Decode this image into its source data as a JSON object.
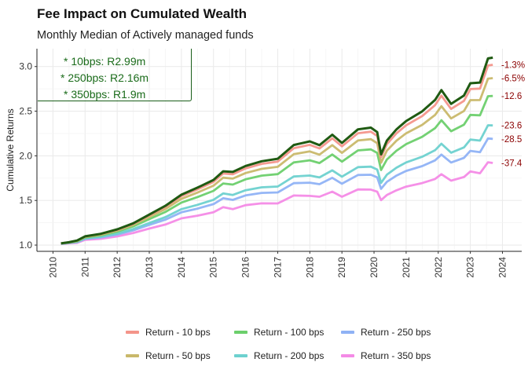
{
  "title": "Fee Impact on Cumulated Wealth",
  "subtitle": "Monthly Median of Actively managed funds",
  "annotations": [
    {
      "text": "* 10bps: R2.99m"
    },
    {
      "text": "* 250bps: R2.16m"
    },
    {
      "text": "* 350bps: R1.9m"
    }
  ],
  "legend": [
    {
      "label": "Return - 10 bps",
      "color": "#f4958a"
    },
    {
      "label": "Return - 100 bps",
      "color": "#6ccf6c"
    },
    {
      "label": "Return - 250 bps",
      "color": "#8fb2f5"
    },
    {
      "label": "Return - 50 bps",
      "color": "#c9b86a"
    },
    {
      "label": "Return - 200 bps",
      "color": "#6dd1cf"
    },
    {
      "label": "Return - 350 bps",
      "color": "#f48ae6"
    }
  ],
  "chart_data": {
    "type": "line",
    "ylabel": "Cumulative Returns",
    "xlabel": "",
    "xlim": [
      2009.5,
      2024.6
    ],
    "ylim": [
      0.93,
      3.2
    ],
    "x_ticks": [
      "2010",
      "2011",
      "2012",
      "2013",
      "2014",
      "2015",
      "2016",
      "2017",
      "2018",
      "2019",
      "2020",
      "2021",
      "2022",
      "2023",
      "2024"
    ],
    "y_ticks": [
      "1.0",
      "1.5",
      "2.0",
      "2.5",
      "3.0"
    ],
    "grid": true,
    "base": {
      "x": [
        2010.25,
        2010.5,
        2010.75,
        2011.0,
        2011.5,
        2012.0,
        2012.5,
        2013.0,
        2013.5,
        2014.0,
        2014.5,
        2015.0,
        2015.3,
        2015.6,
        2016.0,
        2016.5,
        2017.0,
        2017.5,
        2018.0,
        2018.3,
        2018.7,
        2019.0,
        2019.5,
        2019.9,
        2020.1,
        2020.22,
        2020.4,
        2020.7,
        2021.0,
        2021.5,
        2021.9,
        2022.1,
        2022.4,
        2022.8,
        2023.0,
        2023.3,
        2023.55,
        2023.7
      ],
      "y": [
        1.02,
        1.03,
        1.06,
        1.09,
        1.13,
        1.18,
        1.24,
        1.34,
        1.45,
        1.55,
        1.65,
        1.74,
        1.8,
        1.85,
        1.87,
        1.93,
        2.0,
        2.08,
        2.19,
        2.12,
        2.21,
        2.18,
        2.27,
        2.32,
        2.28,
        2.0,
        2.18,
        2.3,
        2.38,
        2.5,
        2.64,
        2.71,
        2.6,
        2.68,
        2.78,
        2.87,
        3.05,
        3.1
      ]
    },
    "series": [
      {
        "name": "Return - 10 bps",
        "color": "#f4958a",
        "final": 3.02,
        "end_label": "-1.3%"
      },
      {
        "name": "Return - 50 bps",
        "color": "#c9b86a",
        "final": 2.87,
        "end_label": "-6.5%"
      },
      {
        "name": "Return - 100 bps",
        "color": "#6ccf6c",
        "final": 2.67,
        "end_label": "-12.6"
      },
      {
        "name": "Return - 200 bps",
        "color": "#6dd1cf",
        "final": 2.34,
        "end_label": "-23.6"
      },
      {
        "name": "Return - 250 bps",
        "color": "#8fb2f5",
        "final": 2.19,
        "end_label": "-28.5"
      },
      {
        "name": "Return - 350 bps",
        "color": "#f48ae6",
        "final": 1.92,
        "end_label": "-37.4"
      }
    ]
  }
}
